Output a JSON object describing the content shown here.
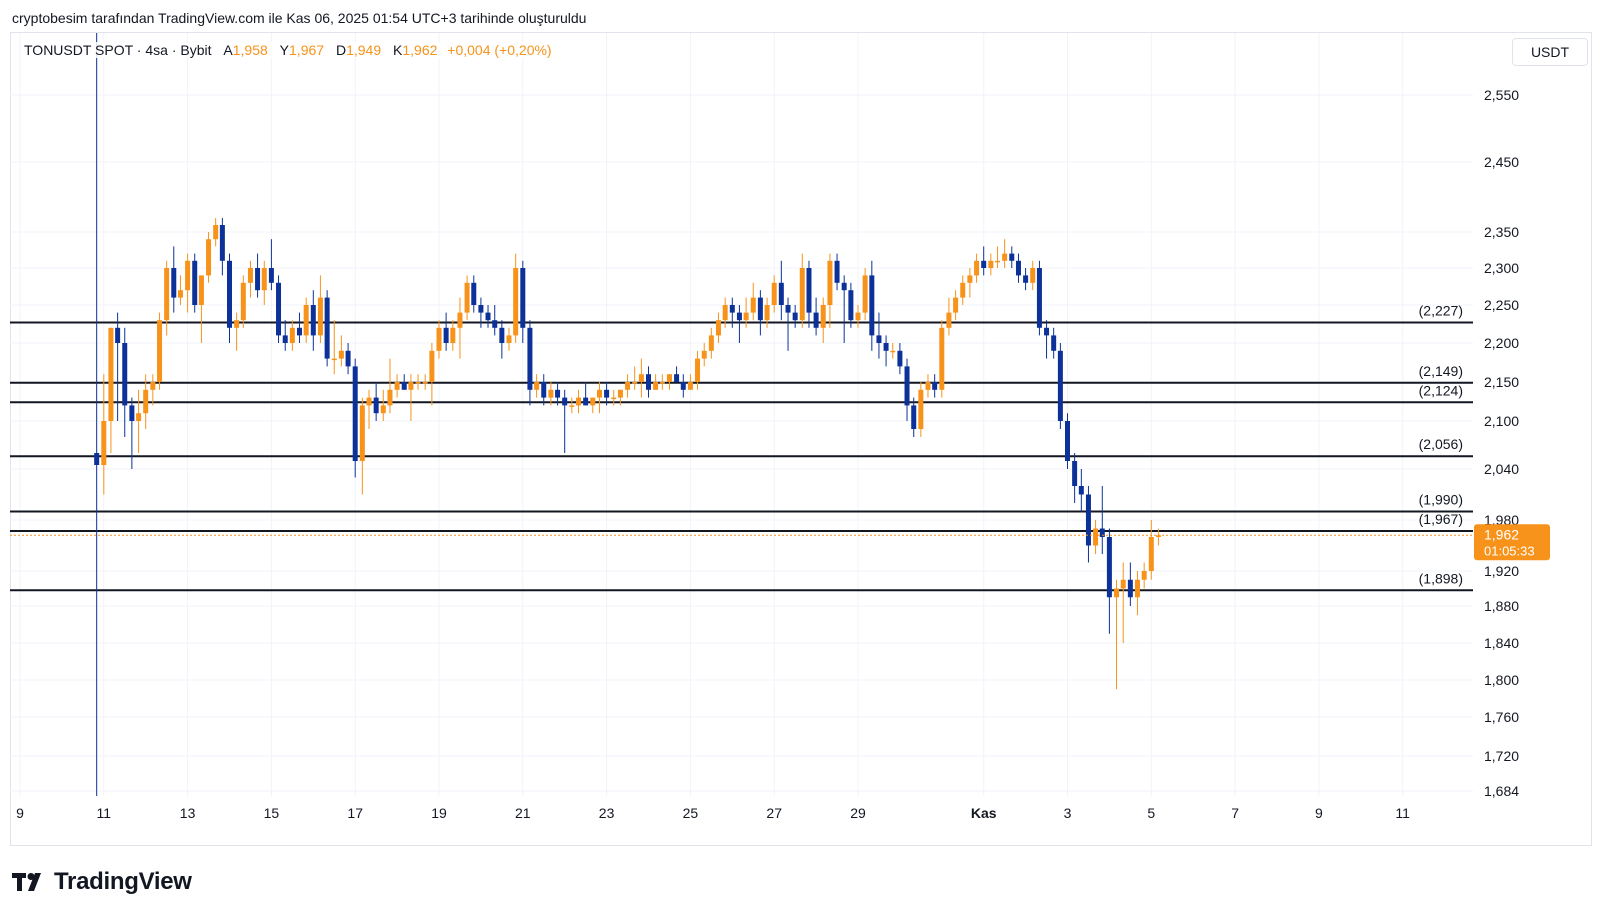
{
  "caption": "cryptobesim tarafından TradingView.com ile Kas 06, 2025 01:54 UTC+3 tarihinde oluşturuldu",
  "legend": {
    "symbol": "TONUSDT SPOT · 4sa · Bybit",
    "open_label": "A",
    "open": "1,958",
    "high_label": "Y",
    "high": "1,967",
    "low_label": "D",
    "low": "1,949",
    "close_label": "K",
    "close": "1,962",
    "change": "+0,004 (+0,20%)"
  },
  "currency": "USDT",
  "brand": "TradingView",
  "price_tag": {
    "price": "1,962",
    "countdown": "01:05:33",
    "color": "#f7931a"
  },
  "colors": {
    "up": "#f7931a",
    "down": "#0c3299",
    "level": "#131722",
    "grid": "#f0f3fa"
  },
  "chart_data": {
    "type": "candlestick",
    "title": "",
    "y_axis_ticks": [
      "2,550",
      "2,450",
      "2,350",
      "2,300",
      "2,250",
      "2,200",
      "2,150",
      "2,100",
      "2,040",
      "1,980",
      "1,920",
      "1,880",
      "1,840",
      "1,800",
      "1,760",
      "1,720",
      "1,684"
    ],
    "y_axis_values": [
      2.55,
      2.45,
      2.35,
      2.3,
      2.25,
      2.2,
      2.15,
      2.1,
      2.04,
      1.98,
      1.92,
      1.88,
      1.84,
      1.8,
      1.76,
      1.72,
      1.684
    ],
    "x_axis_ticks": [
      {
        "label": "9",
        "day": 9
      },
      {
        "label": "11",
        "day": 11
      },
      {
        "label": "13",
        "day": 13
      },
      {
        "label": "15",
        "day": 15
      },
      {
        "label": "17",
        "day": 17
      },
      {
        "label": "19",
        "day": 19
      },
      {
        "label": "21",
        "day": 21
      },
      {
        "label": "23",
        "day": 23
      },
      {
        "label": "25",
        "day": 25
      },
      {
        "label": "27",
        "day": 27
      },
      {
        "label": "29",
        "day": 29
      },
      {
        "label": "Kas",
        "day": 32
      },
      {
        "label": "3",
        "day": 34
      },
      {
        "label": "5",
        "day": 36
      },
      {
        "label": "7",
        "day": 38
      },
      {
        "label": "9",
        "day": 40
      },
      {
        "label": "11",
        "day": 42
      }
    ],
    "levels": [
      {
        "label": "(2,227)",
        "value": 2.227
      },
      {
        "label": "(2,149)",
        "value": 2.149
      },
      {
        "label": "(2,124)",
        "value": 2.124
      },
      {
        "label": "(2,056)",
        "value": 2.056
      },
      {
        "label": "(1,990)",
        "value": 1.99
      },
      {
        "label": "(1,967)",
        "value": 1.967
      },
      {
        "label": "(1,898)",
        "value": 1.898
      }
    ],
    "current_price": 1.962,
    "candles": [
      [
        10.83,
        2.06,
        2.7,
        1.67,
        2.045
      ],
      [
        11.0,
        2.045,
        2.16,
        2.01,
        2.1
      ],
      [
        11.17,
        2.1,
        2.22,
        2.06,
        2.22
      ],
      [
        11.33,
        2.22,
        2.24,
        2.1,
        2.2
      ],
      [
        11.5,
        2.2,
        2.22,
        2.08,
        2.12
      ],
      [
        11.67,
        2.12,
        2.13,
        2.04,
        2.1
      ],
      [
        11.83,
        2.1,
        2.14,
        2.06,
        2.11
      ],
      [
        12.0,
        2.11,
        2.16,
        2.09,
        2.14
      ],
      [
        12.17,
        2.14,
        2.16,
        2.12,
        2.15
      ],
      [
        12.33,
        2.15,
        2.24,
        2.14,
        2.23
      ],
      [
        12.5,
        2.23,
        2.31,
        2.21,
        2.3
      ],
      [
        12.67,
        2.3,
        2.33,
        2.24,
        2.26
      ],
      [
        12.83,
        2.26,
        2.29,
        2.25,
        2.27
      ],
      [
        13.0,
        2.27,
        2.32,
        2.24,
        2.31
      ],
      [
        13.17,
        2.31,
        2.32,
        2.24,
        2.25
      ],
      [
        13.33,
        2.25,
        2.28,
        2.2,
        2.29
      ],
      [
        13.5,
        2.29,
        2.35,
        2.28,
        2.34
      ],
      [
        13.67,
        2.34,
        2.37,
        2.33,
        2.36
      ],
      [
        13.83,
        2.36,
        2.37,
        2.29,
        2.31
      ],
      [
        14.0,
        2.31,
        2.32,
        2.2,
        2.22
      ],
      [
        14.17,
        2.22,
        2.24,
        2.19,
        2.23
      ],
      [
        14.33,
        2.23,
        2.29,
        2.22,
        2.28
      ],
      [
        14.5,
        2.28,
        2.31,
        2.26,
        2.3
      ],
      [
        14.67,
        2.3,
        2.32,
        2.26,
        2.27
      ],
      [
        14.83,
        2.27,
        2.31,
        2.25,
        2.3
      ],
      [
        15.0,
        2.3,
        2.34,
        2.27,
        2.28
      ],
      [
        15.17,
        2.28,
        2.29,
        2.2,
        2.21
      ],
      [
        15.33,
        2.21,
        2.23,
        2.19,
        2.2
      ],
      [
        15.5,
        2.2,
        2.23,
        2.19,
        2.22
      ],
      [
        15.67,
        2.22,
        2.24,
        2.2,
        2.21
      ],
      [
        15.83,
        2.21,
        2.26,
        2.2,
        2.25
      ],
      [
        16.0,
        2.25,
        2.27,
        2.19,
        2.21
      ],
      [
        16.17,
        2.21,
        2.29,
        2.2,
        2.26
      ],
      [
        16.33,
        2.26,
        2.27,
        2.17,
        2.18
      ],
      [
        16.5,
        2.18,
        2.23,
        2.16,
        2.18
      ],
      [
        16.67,
        2.18,
        2.21,
        2.17,
        2.19
      ],
      [
        16.83,
        2.19,
        2.2,
        2.16,
        2.17
      ],
      [
        17.0,
        2.17,
        2.18,
        2.03,
        2.05
      ],
      [
        17.17,
        2.05,
        2.13,
        2.01,
        2.12
      ],
      [
        17.33,
        2.12,
        2.14,
        2.09,
        2.13
      ],
      [
        17.5,
        2.13,
        2.15,
        2.1,
        2.11
      ],
      [
        17.67,
        2.11,
        2.14,
        2.1,
        2.12
      ],
      [
        17.83,
        2.12,
        2.18,
        2.11,
        2.14
      ],
      [
        18.0,
        2.14,
        2.16,
        2.13,
        2.15
      ],
      [
        18.17,
        2.15,
        2.16,
        2.14,
        2.14
      ],
      [
        18.33,
        2.14,
        2.16,
        2.1,
        2.15
      ],
      [
        18.5,
        2.15,
        2.16,
        2.14,
        2.15
      ],
      [
        18.67,
        2.15,
        2.16,
        2.14,
        2.15
      ],
      [
        18.83,
        2.15,
        2.2,
        2.12,
        2.19
      ],
      [
        19.0,
        2.19,
        2.23,
        2.18,
        2.22
      ],
      [
        19.17,
        2.22,
        2.24,
        2.19,
        2.2
      ],
      [
        19.33,
        2.2,
        2.23,
        2.19,
        2.22
      ],
      [
        19.5,
        2.22,
        2.26,
        2.18,
        2.24
      ],
      [
        19.67,
        2.24,
        2.29,
        2.23,
        2.28
      ],
      [
        19.83,
        2.28,
        2.29,
        2.24,
        2.25
      ],
      [
        20.0,
        2.25,
        2.26,
        2.22,
        2.24
      ],
      [
        20.17,
        2.24,
        2.25,
        2.22,
        2.23
      ],
      [
        20.33,
        2.23,
        2.25,
        2.21,
        2.22
      ],
      [
        20.5,
        2.22,
        2.23,
        2.18,
        2.2
      ],
      [
        20.67,
        2.2,
        2.22,
        2.19,
        2.21
      ],
      [
        20.83,
        2.21,
        2.32,
        2.2,
        2.3
      ],
      [
        21.0,
        2.3,
        2.31,
        2.2,
        2.22
      ],
      [
        21.17,
        2.22,
        2.23,
        2.12,
        2.14
      ],
      [
        21.33,
        2.14,
        2.16,
        2.13,
        2.15
      ],
      [
        21.5,
        2.15,
        2.16,
        2.12,
        2.13
      ],
      [
        21.67,
        2.13,
        2.15,
        2.12,
        2.14
      ],
      [
        21.83,
        2.14,
        2.15,
        2.12,
        2.13
      ],
      [
        22.0,
        2.13,
        2.14,
        2.06,
        2.12
      ],
      [
        22.17,
        2.12,
        2.13,
        2.11,
        2.12
      ],
      [
        22.33,
        2.12,
        2.14,
        2.11,
        2.13
      ],
      [
        22.5,
        2.13,
        2.15,
        2.12,
        2.12
      ],
      [
        22.67,
        2.12,
        2.13,
        2.11,
        2.13
      ],
      [
        22.83,
        2.13,
        2.15,
        2.11,
        2.14
      ],
      [
        23.0,
        2.14,
        2.15,
        2.12,
        2.13
      ],
      [
        23.17,
        2.13,
        2.14,
        2.12,
        2.13
      ],
      [
        23.33,
        2.13,
        2.14,
        2.12,
        2.14
      ],
      [
        23.5,
        2.14,
        2.16,
        2.13,
        2.15
      ],
      [
        23.67,
        2.15,
        2.17,
        2.14,
        2.15
      ],
      [
        23.83,
        2.15,
        2.18,
        2.13,
        2.16
      ],
      [
        24.0,
        2.16,
        2.17,
        2.13,
        2.14
      ],
      [
        24.17,
        2.14,
        2.16,
        2.14,
        2.15
      ],
      [
        24.33,
        2.15,
        2.16,
        2.14,
        2.15
      ],
      [
        24.5,
        2.15,
        2.16,
        2.14,
        2.16
      ],
      [
        24.67,
        2.16,
        2.17,
        2.15,
        2.15
      ],
      [
        24.83,
        2.15,
        2.16,
        2.13,
        2.14
      ],
      [
        25.0,
        2.14,
        2.16,
        2.14,
        2.15
      ],
      [
        25.17,
        2.15,
        2.19,
        2.14,
        2.18
      ],
      [
        25.33,
        2.18,
        2.2,
        2.17,
        2.19
      ],
      [
        25.5,
        2.19,
        2.22,
        2.18,
        2.21
      ],
      [
        25.67,
        2.21,
        2.24,
        2.2,
        2.23
      ],
      [
        25.83,
        2.23,
        2.26,
        2.22,
        2.25
      ],
      [
        26.0,
        2.25,
        2.26,
        2.22,
        2.24
      ],
      [
        26.17,
        2.24,
        2.25,
        2.2,
        2.23
      ],
      [
        26.33,
        2.23,
        2.26,
        2.22,
        2.24
      ],
      [
        26.5,
        2.24,
        2.28,
        2.23,
        2.26
      ],
      [
        26.67,
        2.26,
        2.27,
        2.21,
        2.23
      ],
      [
        26.83,
        2.23,
        2.26,
        2.22,
        2.25
      ],
      [
        27.0,
        2.25,
        2.29,
        2.24,
        2.28
      ],
      [
        27.17,
        2.28,
        2.31,
        2.23,
        2.25
      ],
      [
        27.33,
        2.25,
        2.26,
        2.19,
        2.24
      ],
      [
        27.5,
        2.24,
        2.25,
        2.22,
        2.23
      ],
      [
        27.67,
        2.23,
        2.32,
        2.22,
        2.3
      ],
      [
        27.83,
        2.3,
        2.31,
        2.22,
        2.24
      ],
      [
        28.0,
        2.24,
        2.26,
        2.21,
        2.22
      ],
      [
        28.17,
        2.22,
        2.26,
        2.2,
        2.25
      ],
      [
        28.33,
        2.25,
        2.32,
        2.22,
        2.31
      ],
      [
        28.5,
        2.31,
        2.32,
        2.27,
        2.28
      ],
      [
        28.67,
        2.28,
        2.29,
        2.2,
        2.27
      ],
      [
        28.83,
        2.27,
        2.28,
        2.22,
        2.23
      ],
      [
        29.0,
        2.23,
        2.25,
        2.22,
        2.24
      ],
      [
        29.17,
        2.24,
        2.3,
        2.23,
        2.29
      ],
      [
        29.33,
        2.29,
        2.31,
        2.19,
        2.21
      ],
      [
        29.5,
        2.21,
        2.24,
        2.18,
        2.2
      ],
      [
        29.67,
        2.2,
        2.21,
        2.17,
        2.19
      ],
      [
        29.83,
        2.19,
        2.2,
        2.18,
        2.19
      ],
      [
        30.0,
        2.19,
        2.2,
        2.16,
        2.17
      ],
      [
        30.17,
        2.17,
        2.18,
        2.1,
        2.12
      ],
      [
        30.33,
        2.12,
        2.13,
        2.08,
        2.09
      ],
      [
        30.5,
        2.09,
        2.15,
        2.08,
        2.14
      ],
      [
        30.67,
        2.14,
        2.16,
        2.13,
        2.15
      ],
      [
        30.83,
        2.15,
        2.16,
        2.13,
        2.14
      ],
      [
        31.0,
        2.14,
        2.23,
        2.13,
        2.22
      ],
      [
        31.17,
        2.22,
        2.26,
        2.21,
        2.24
      ],
      [
        31.33,
        2.24,
        2.27,
        2.23,
        2.26
      ],
      [
        31.5,
        2.26,
        2.29,
        2.25,
        2.28
      ],
      [
        31.67,
        2.28,
        2.3,
        2.26,
        2.29
      ],
      [
        31.83,
        2.29,
        2.32,
        2.28,
        2.31
      ],
      [
        32.0,
        2.31,
        2.33,
        2.29,
        2.3
      ],
      [
        32.17,
        2.3,
        2.32,
        2.29,
        2.31
      ],
      [
        32.33,
        2.31,
        2.33,
        2.3,
        2.31
      ],
      [
        32.5,
        2.31,
        2.34,
        2.3,
        2.32
      ],
      [
        32.67,
        2.32,
        2.33,
        2.3,
        2.31
      ],
      [
        32.83,
        2.31,
        2.32,
        2.28,
        2.29
      ],
      [
        33.0,
        2.29,
        2.3,
        2.27,
        2.28
      ],
      [
        33.17,
        2.28,
        2.31,
        2.27,
        2.3
      ],
      [
        33.33,
        2.3,
        2.31,
        2.21,
        2.22
      ],
      [
        33.5,
        2.22,
        2.23,
        2.18,
        2.21
      ],
      [
        33.67,
        2.21,
        2.22,
        2.18,
        2.19
      ],
      [
        33.83,
        2.19,
        2.2,
        2.09,
        2.1
      ],
      [
        34.0,
        2.1,
        2.11,
        2.04,
        2.05
      ],
      [
        34.17,
        2.05,
        2.06,
        2.0,
        2.02
      ],
      [
        34.33,
        2.02,
        2.04,
        1.99,
        2.01
      ],
      [
        34.5,
        2.01,
        2.02,
        1.93,
        1.95
      ],
      [
        34.67,
        1.95,
        1.98,
        1.94,
        1.97
      ],
      [
        34.83,
        1.97,
        2.02,
        1.94,
        1.96
      ],
      [
        35.0,
        1.96,
        1.97,
        1.85,
        1.89
      ],
      [
        35.17,
        1.89,
        1.91,
        1.79,
        1.9
      ],
      [
        35.33,
        1.9,
        1.93,
        1.84,
        1.91
      ],
      [
        35.5,
        1.91,
        1.93,
        1.88,
        1.89
      ],
      [
        35.67,
        1.89,
        1.92,
        1.87,
        1.91
      ],
      [
        35.83,
        1.91,
        1.93,
        1.9,
        1.92
      ],
      [
        36.0,
        1.92,
        1.98,
        1.91,
        1.96
      ],
      [
        36.17,
        1.96,
        1.97,
        1.95,
        1.962
      ]
    ]
  }
}
